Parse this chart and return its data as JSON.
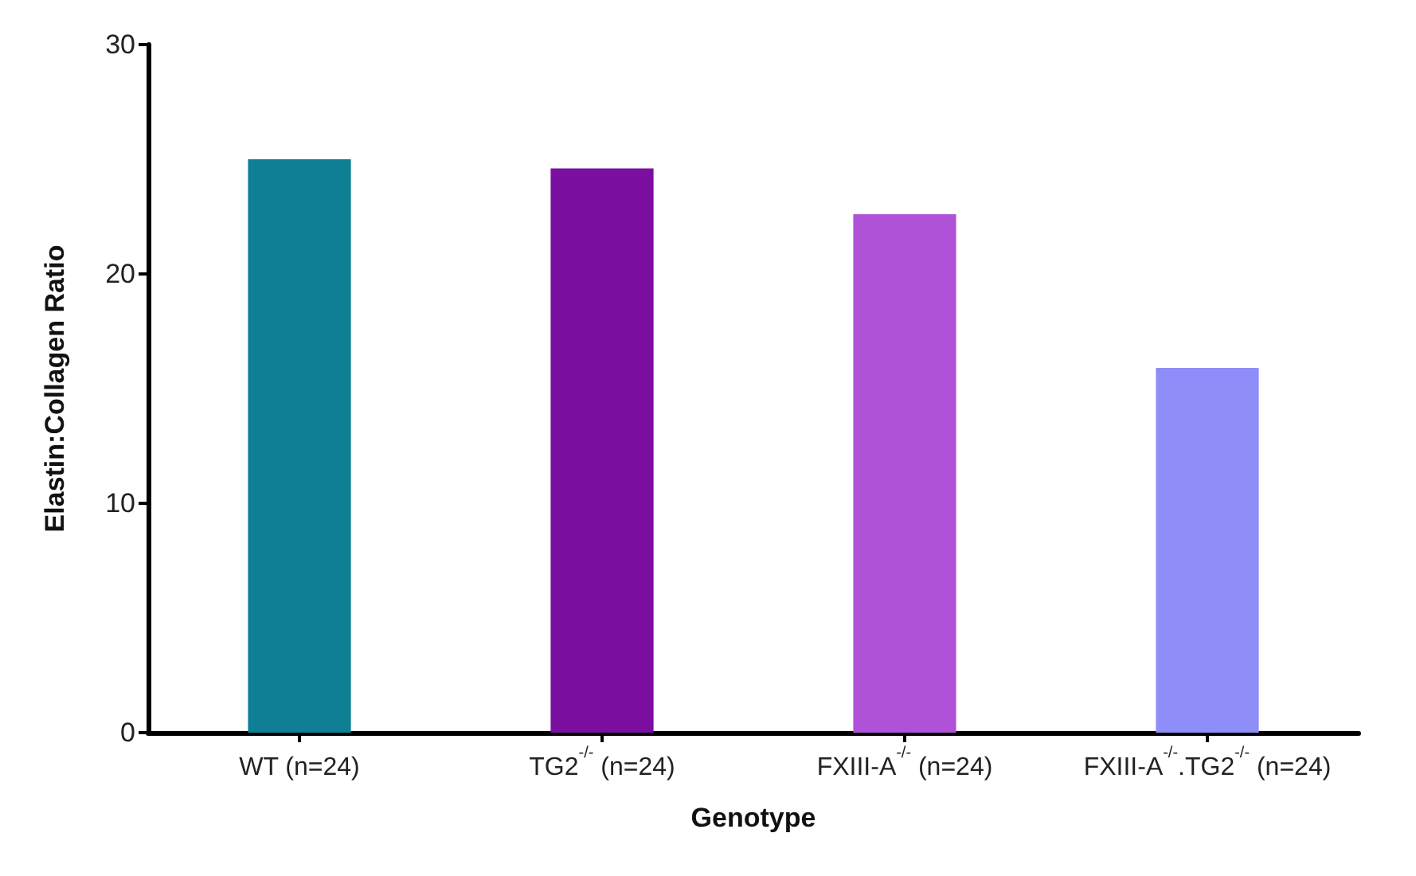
{
  "chart_data": {
    "type": "bar",
    "xlabel": "Genotype",
    "ylabel": "Elastin:Collagen Ratio",
    "categories": [
      "WT (n=24)",
      "TG2$^{-/-}$ (n=24)",
      "FXIII-A$^{-/-}$ (n=24)",
      "FXIII-A$^{-/-}$.TG2$^{-/-}$ (n=24)"
    ],
    "values": [
      25.0,
      24.6,
      22.6,
      15.9
    ],
    "colors": [
      "#0f7f95",
      "#7b0fa0",
      "#b052d8",
      "#8f8ef8"
    ],
    "ylim": [
      0,
      30
    ],
    "yticks": [
      0,
      10,
      20,
      30
    ],
    "grid": false
  }
}
